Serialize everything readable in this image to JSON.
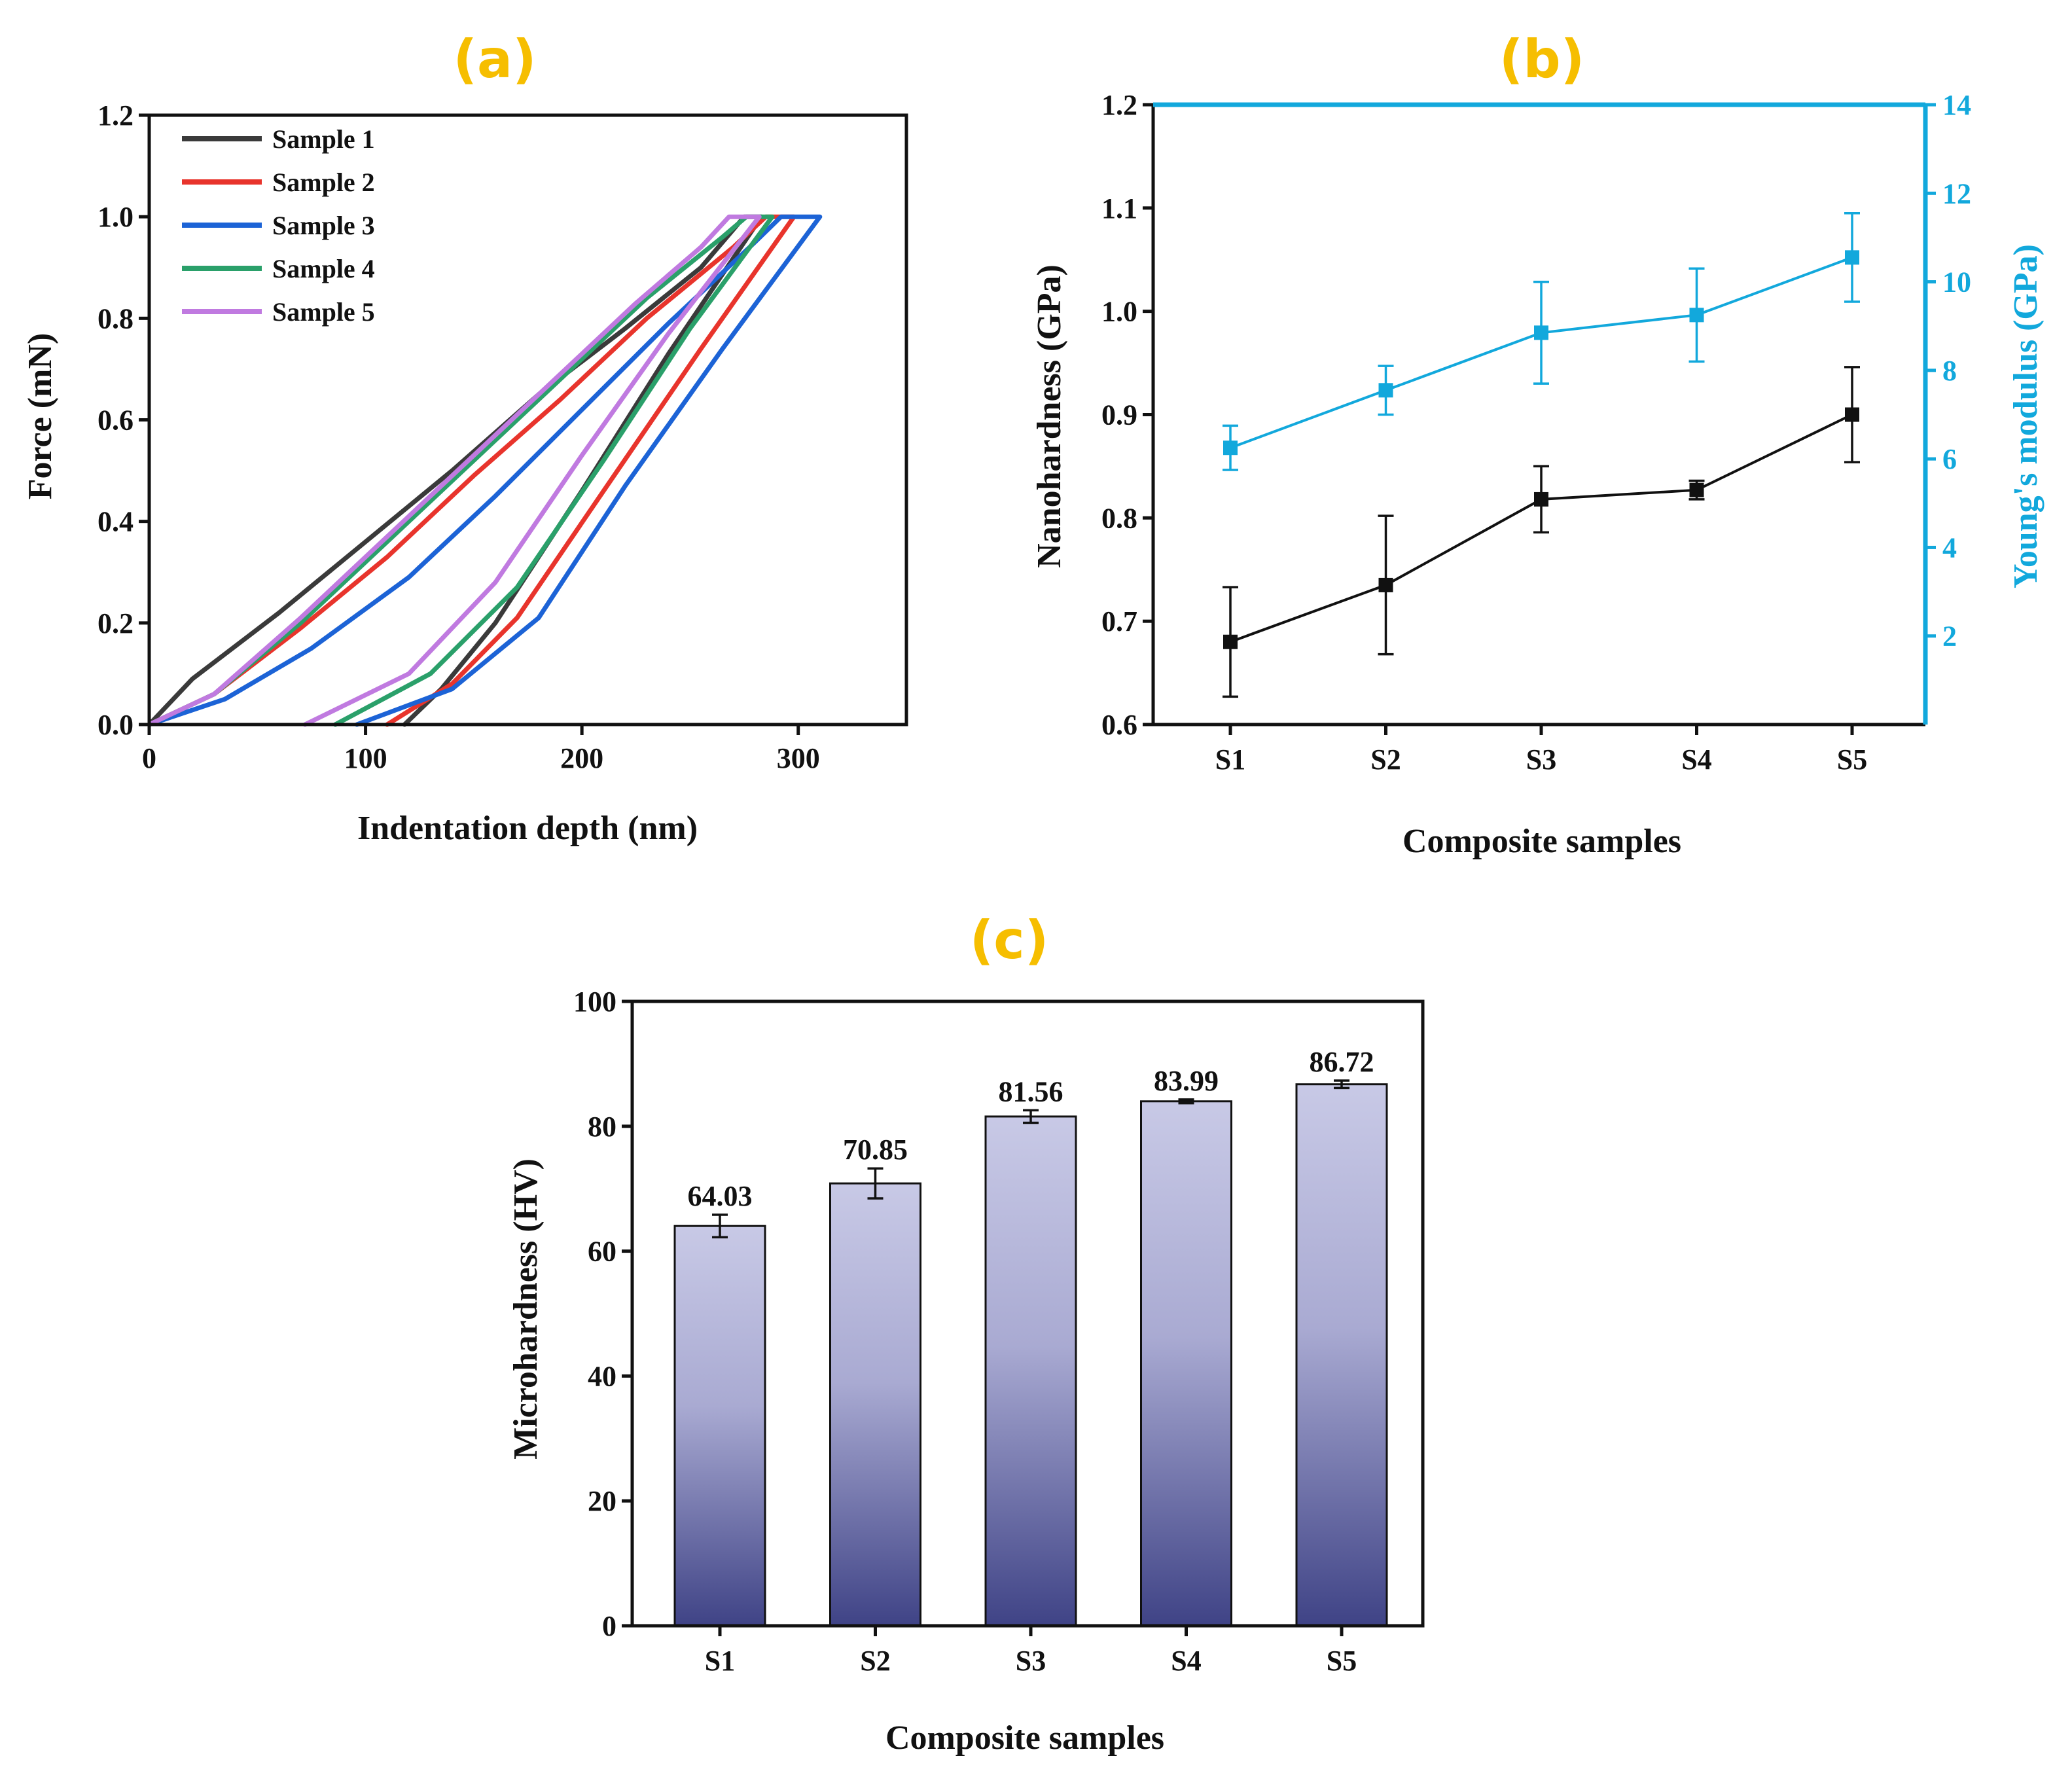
{
  "colors": {
    "panel_label": "#F6BE00",
    "axis": "#111111",
    "cyan": "#12A8DC",
    "bar_top": "#C8C9E6",
    "bar_bottom": "#3F4386"
  },
  "chart_data": [
    {
      "id": "a",
      "panel_label": "(a)",
      "type": "line",
      "xlabel": "Indentation depth (nm)",
      "ylabel": "Force (mN)",
      "xlim": [
        0,
        350
      ],
      "ylim": [
        0,
        1.2
      ],
      "xticks": [
        0,
        100,
        200,
        300
      ],
      "yticks": [
        0.0,
        0.2,
        0.4,
        0.6,
        0.8,
        1.0,
        1.2
      ],
      "xtick_labels": [
        "0",
        "100",
        "200",
        "300"
      ],
      "ytick_labels": [
        "0.0",
        "0.2",
        "0.4",
        "0.6",
        "0.8",
        "1.0",
        "1.2"
      ],
      "legend_position": "top-left",
      "series": [
        {
          "name": "Sample 1",
          "color": "#3a3a3a",
          "loading": [
            [
              0,
              0
            ],
            [
              20,
              0.09
            ],
            [
              60,
              0.22
            ],
            [
              100,
              0.36
            ],
            [
              140,
              0.5
            ],
            [
              180,
              0.65
            ],
            [
              220,
              0.78
            ],
            [
              255,
              0.9
            ],
            [
              275,
              1.0
            ]
          ],
          "hold_end": 283,
          "unloading": [
            [
              283,
              1.0
            ],
            [
              240,
              0.73
            ],
            [
              200,
              0.46
            ],
            [
              160,
              0.2
            ],
            [
              135,
              0.07
            ],
            [
              118,
              0.0
            ]
          ]
        },
        {
          "name": "Sample 2",
          "color": "#E8342C",
          "loading": [
            [
              0,
              0
            ],
            [
              30,
              0.06
            ],
            [
              70,
              0.19
            ],
            [
              110,
              0.33
            ],
            [
              150,
              0.49
            ],
            [
              190,
              0.64
            ],
            [
              230,
              0.8
            ],
            [
              270,
              0.94
            ],
            [
              285,
              1.0
            ]
          ],
          "hold_end": 298,
          "unloading": [
            [
              298,
              1.0
            ],
            [
              255,
              0.74
            ],
            [
              210,
              0.46
            ],
            [
              170,
              0.21
            ],
            [
              140,
              0.08
            ],
            [
              110,
              0.0
            ]
          ]
        },
        {
          "name": "Sample 3",
          "color": "#1C63D6",
          "loading": [
            [
              0,
              0
            ],
            [
              35,
              0.05
            ],
            [
              75,
              0.15
            ],
            [
              120,
              0.29
            ],
            [
              160,
              0.45
            ],
            [
              200,
              0.62
            ],
            [
              240,
              0.79
            ],
            [
              280,
              0.95
            ],
            [
              292,
              1.0
            ]
          ],
          "hold_end": 310,
          "unloading": [
            [
              310,
              1.0
            ],
            [
              265,
              0.74
            ],
            [
              220,
              0.47
            ],
            [
              180,
              0.21
            ],
            [
              140,
              0.07
            ],
            [
              96,
              0.0
            ]
          ]
        },
        {
          "name": "Sample 4",
          "color": "#2AA06A",
          "loading": [
            [
              0,
              0
            ],
            [
              30,
              0.06
            ],
            [
              70,
              0.2
            ],
            [
              110,
              0.36
            ],
            [
              150,
              0.52
            ],
            [
              190,
              0.68
            ],
            [
              230,
              0.84
            ],
            [
              265,
              0.96
            ],
            [
              276,
              1.0
            ]
          ],
          "hold_end": 288,
          "unloading": [
            [
              288,
              1.0
            ],
            [
              250,
              0.78
            ],
            [
              210,
              0.52
            ],
            [
              170,
              0.27
            ],
            [
              130,
              0.1
            ],
            [
              86,
              0.0
            ]
          ]
        },
        {
          "name": "Sample 5",
          "color": "#C07AE0",
          "loading": [
            [
              0,
              0
            ],
            [
              30,
              0.06
            ],
            [
              70,
              0.21
            ],
            [
              110,
              0.37
            ],
            [
              150,
              0.53
            ],
            [
              190,
              0.69
            ],
            [
              225,
              0.83
            ],
            [
              255,
              0.94
            ],
            [
              268,
              1.0
            ]
          ],
          "hold_end": 282,
          "unloading": [
            [
              282,
              1.0
            ],
            [
              240,
              0.77
            ],
            [
              200,
              0.53
            ],
            [
              160,
              0.28
            ],
            [
              120,
              0.1
            ],
            [
              72,
              0.0
            ]
          ]
        }
      ]
    },
    {
      "id": "b",
      "panel_label": "(b)",
      "type": "line",
      "xlabel": "Composite samples",
      "ylabel": "Nanohardness (GPa)",
      "ylabel_right": "Young's modulus (GPa)",
      "categories": [
        "S1",
        "S2",
        "S3",
        "S4",
        "S5"
      ],
      "ylim": [
        0.6,
        1.2
      ],
      "yticks": [
        0.6,
        0.7,
        0.8,
        0.9,
        1.0,
        1.1,
        1.2
      ],
      "ytick_labels": [
        "0.6",
        "0.7",
        "0.8",
        "0.9",
        "1.0",
        "1.1",
        "1.2"
      ],
      "ylim_right": [
        0,
        14
      ],
      "yticks_right": [
        2,
        4,
        6,
        8,
        10,
        12,
        14
      ],
      "ytick_labels_right": [
        "2",
        "4",
        "6",
        "8",
        "10",
        "12",
        "14"
      ],
      "series": [
        {
          "name": "Nanohardness",
          "axis": "left",
          "color": "#111111",
          "values": [
            0.68,
            0.735,
            0.818,
            0.827,
            0.9
          ],
          "errors": [
            0.053,
            0.067,
            0.032,
            0.009,
            0.046
          ]
        },
        {
          "name": "Young's modulus",
          "axis": "right",
          "color": "#12A8DC",
          "values": [
            6.25,
            7.55,
            8.85,
            9.25,
            10.55
          ],
          "errors": [
            0.5,
            0.55,
            1.15,
            1.05,
            1.0
          ]
        }
      ]
    },
    {
      "id": "c",
      "panel_label": "(c)",
      "type": "bar",
      "xlabel": "Composite samples",
      "ylabel": "Microhardness (HV)",
      "categories": [
        "S1",
        "S2",
        "S3",
        "S4",
        "S5"
      ],
      "values": [
        64.03,
        70.85,
        81.56,
        83.99,
        86.72
      ],
      "value_labels": [
        "64.03",
        "70.85",
        "81.56",
        "83.99",
        "86.72"
      ],
      "errors": [
        1.8,
        2.4,
        1.0,
        0.3,
        0.6
      ],
      "ylim": [
        0,
        100
      ],
      "yticks": [
        0,
        20,
        40,
        60,
        80,
        100
      ],
      "ytick_labels": [
        "0",
        "20",
        "40",
        "60",
        "80",
        "100"
      ]
    }
  ]
}
